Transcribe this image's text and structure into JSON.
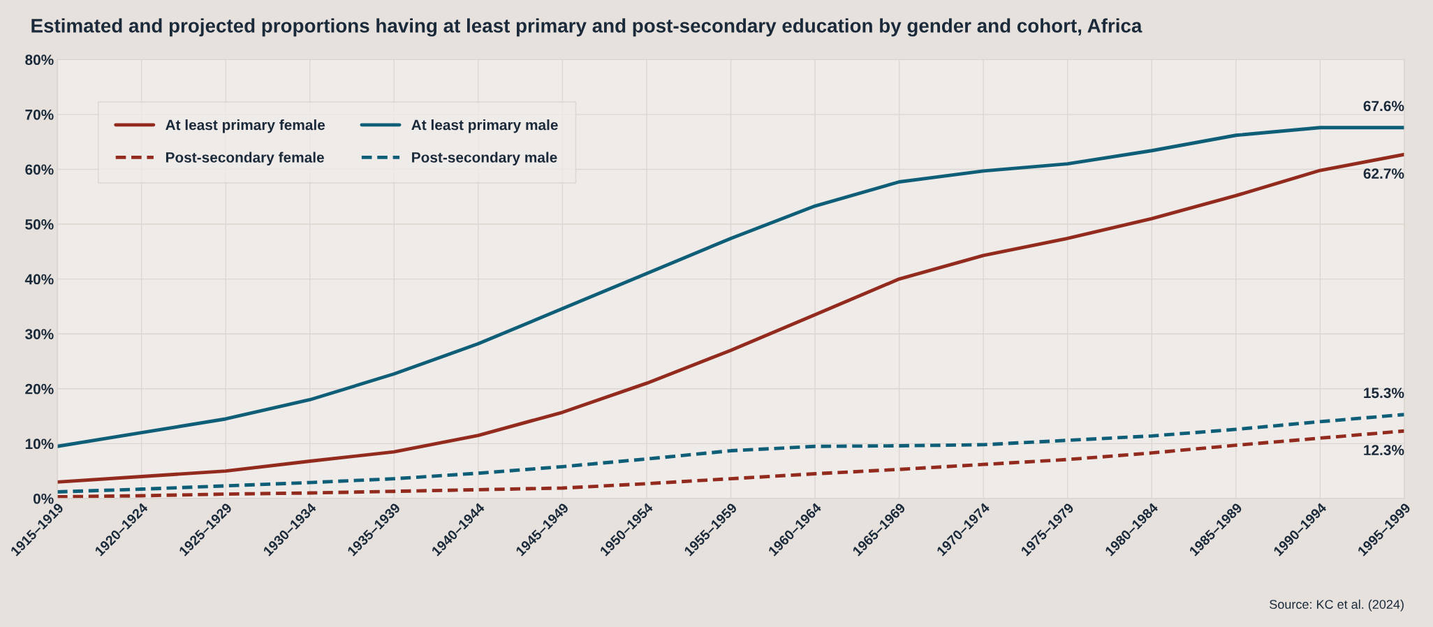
{
  "chart_data": {
    "type": "line",
    "title": "Estimated and projected proportions having at least primary and post-secondary education by gender and cohort, Africa",
    "categories": [
      "1915–1919",
      "1920–1924",
      "1925–1929",
      "1930–1934",
      "1935–1939",
      "1940–1944",
      "1945–1949",
      "1950–1954",
      "1955–1959",
      "1960–1964",
      "1965–1969",
      "1970–1974",
      "1975–1979",
      "1980–1984",
      "1985–1989",
      "1990–1994",
      "1995–1999"
    ],
    "series": [
      {
        "name": "At least primary female",
        "color": "#922b1e",
        "line_style": "solid",
        "values": [
          3,
          4,
          5,
          6.8,
          8.5,
          11.5,
          15.7,
          21,
          27,
          33.5,
          40,
          44.3,
          47.4,
          51,
          55.2,
          59.8,
          62.7
        ],
        "value_labels": [
          null,
          null,
          null,
          null,
          null,
          null,
          null,
          null,
          null,
          null,
          null,
          null,
          null,
          null,
          null,
          null,
          "62.7%"
        ]
      },
      {
        "name": "At least primary male",
        "color": "#0f5e78",
        "line_style": "solid",
        "values": [
          9.5,
          12,
          14.5,
          18,
          22.7,
          28.2,
          34.6,
          41,
          47.4,
          53.3,
          57.7,
          59.7,
          61,
          63.4,
          66.2,
          67.6,
          67.6
        ],
        "value_labels": [
          null,
          null,
          null,
          null,
          null,
          null,
          null,
          null,
          null,
          null,
          null,
          null,
          null,
          null,
          null,
          null,
          "67.6%"
        ]
      },
      {
        "name": "Post-secondary female",
        "color": "#922b1e",
        "line_style": "dashed",
        "values": [
          0.3,
          0.5,
          0.8,
          1.0,
          1.3,
          1.6,
          1.9,
          2.7,
          3.6,
          4.5,
          5.3,
          6.2,
          7.1,
          8.3,
          9.7,
          11,
          12.3
        ],
        "value_labels": [
          null,
          null,
          null,
          null,
          null,
          null,
          null,
          null,
          null,
          null,
          null,
          null,
          null,
          null,
          null,
          null,
          "12.3%"
        ]
      },
      {
        "name": "Post-secondary male",
        "color": "#0f5e78",
        "line_style": "dashed",
        "values": [
          1.2,
          1.7,
          2.3,
          2.9,
          3.6,
          4.6,
          5.8,
          7.2,
          8.7,
          9.5,
          9.6,
          9.8,
          10.6,
          11.4,
          12.6,
          14,
          15.3
        ],
        "value_labels": [
          null,
          null,
          null,
          null,
          null,
          null,
          null,
          null,
          null,
          null,
          null,
          null,
          null,
          null,
          null,
          null,
          "15.3%"
        ]
      }
    ],
    "ylim": [
      0,
      80
    ],
    "yticks": [
      {
        "value": 0,
        "label": "0%"
      },
      {
        "value": 10,
        "label": "10%"
      },
      {
        "value": 20,
        "label": "20%"
      },
      {
        "value": 30,
        "label": "30%"
      },
      {
        "value": 40,
        "label": "40%"
      },
      {
        "value": 50,
        "label": "50%"
      },
      {
        "value": 60,
        "label": "60%"
      },
      {
        "value": 70,
        "label": "70%"
      },
      {
        "value": 80,
        "label": "80%"
      }
    ],
    "grid": true,
    "legend": "top left",
    "marker": "none",
    "annotations": [
      "Source: KC et al. (2024)"
    ]
  }
}
